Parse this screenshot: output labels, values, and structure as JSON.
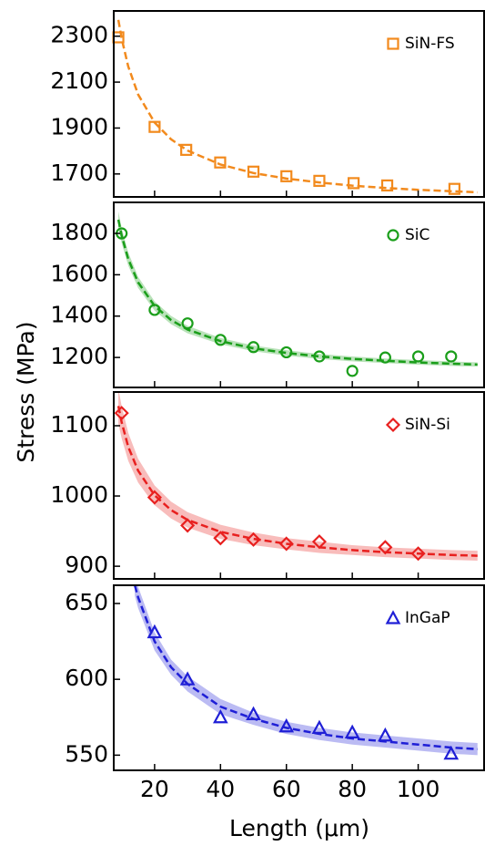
{
  "ylabel": "Stress (MPa)",
  "xlabel": "Length (μm)",
  "chart_data": [
    {
      "type": "scatter",
      "legend": "upper right",
      "ylim": [
        1600,
        2410
      ],
      "yticks": [
        1700,
        1900,
        2100,
        2300
      ],
      "series": [
        {
          "name": "SiN-FS",
          "color": "#f28a1d",
          "marker": "square",
          "x": [
            9,
            20,
            29.6,
            39.9,
            50,
            60,
            70,
            80.4,
            90.6,
            111
          ],
          "values": [
            2295,
            1905,
            1805,
            1750,
            1710,
            1690,
            1670,
            1660,
            1650,
            1635
          ]
        }
      ],
      "fit": {
        "x": [
          9,
          10,
          12,
          15,
          20,
          25,
          30,
          40,
          50,
          60,
          70,
          80,
          90,
          100,
          110,
          118
        ],
        "values": [
          2371,
          2290,
          2168,
          2046,
          1924,
          1851,
          1802,
          1741,
          1704,
          1680,
          1663,
          1649,
          1639,
          1631,
          1625,
          1620
        ]
      }
    },
    {
      "type": "scatter",
      "legend": "upper right",
      "ylim": [
        1055,
        1950
      ],
      "yticks": [
        1200,
        1400,
        1600,
        1800
      ],
      "series": [
        {
          "name": "SiC",
          "color": "#1a9e1a",
          "marker": "circle",
          "x": [
            10,
            20,
            30,
            40,
            50,
            60,
            70,
            80,
            90,
            100,
            110
          ],
          "values": [
            1800,
            1430,
            1365,
            1285,
            1250,
            1225,
            1205,
            1135,
            1200,
            1205,
            1205
          ]
        }
      ],
      "fit": {
        "x": [
          9,
          10,
          12,
          15,
          20,
          25,
          30,
          40,
          50,
          60,
          70,
          80,
          90,
          100,
          110,
          118
        ],
        "values": [
          1866,
          1790,
          1676,
          1563,
          1449,
          1381,
          1335,
          1279,
          1244,
          1222,
          1205,
          1193,
          1184,
          1176,
          1170,
          1166
        ],
        "lower": [
          1826,
          1753,
          1644,
          1536,
          1427,
          1361,
          1317,
          1264,
          1230,
          1209,
          1193,
          1181,
          1173,
          1165,
          1159,
          1156
        ],
        "upper": [
          1906,
          1827,
          1708,
          1590,
          1471,
          1401,
          1353,
          1294,
          1258,
          1235,
          1217,
          1205,
          1195,
          1187,
          1181,
          1176
        ]
      }
    },
    {
      "type": "scatter",
      "legend": "upper right",
      "ylim": [
        882,
        1148
      ],
      "yticks": [
        900,
        1000,
        1100
      ],
      "series": [
        {
          "name": "SiN-Si",
          "color": "#e8201f",
          "marker": "diamond",
          "x": [
            10,
            20,
            30,
            40,
            50,
            60,
            70,
            90,
            100
          ],
          "values": [
            1118,
            998,
            958,
            940,
            938,
            932,
            935,
            927,
            918
          ]
        }
      ],
      "fit": {
        "x": [
          9,
          10,
          12,
          15,
          20,
          25,
          30,
          40,
          50,
          60,
          70,
          80,
          90,
          100,
          110,
          118
        ],
        "values": [
          1128,
          1105,
          1070,
          1036,
          1001,
          980,
          966,
          949,
          939,
          932,
          927,
          923,
          920,
          918,
          916,
          915
        ],
        "lower": [
          1103,
          1082,
          1050,
          1019,
          987,
          968,
          955,
          939,
          930,
          924,
          919,
          916,
          913,
          911,
          909,
          908
        ],
        "upper": [
          1153,
          1128,
          1090,
          1053,
          1015,
          992,
          977,
          959,
          948,
          940,
          935,
          930,
          927,
          925,
          923,
          922
        ]
      }
    },
    {
      "type": "scatter",
      "legend": "upper right",
      "ylim": [
        540,
        662
      ],
      "yticks": [
        550,
        600,
        650
      ],
      "xlim": [
        7.6,
        120
      ],
      "xticks": [
        20,
        40,
        60,
        80,
        100
      ],
      "series": [
        {
          "name": "InGaP",
          "color": "#1f1fd6",
          "marker": "triangle",
          "x": [
            20,
            30,
            40,
            50,
            60,
            70,
            80,
            90,
            110
          ],
          "values": [
            631,
            600,
            575,
            577,
            569,
            568,
            565,
            563,
            551
          ]
        }
      ],
      "fit": {
        "x": [
          14,
          15,
          20,
          25,
          30,
          40,
          50,
          60,
          70,
          80,
          90,
          100,
          110,
          118
        ],
        "values": [
          662,
          654,
          625,
          608,
          597,
          582,
          574,
          568,
          564,
          561,
          559,
          557,
          555,
          554
        ],
        "lower": [
          655,
          647,
          619,
          603,
          592,
          577,
          570,
          564,
          560,
          557,
          555,
          553,
          551,
          550
        ],
        "upper": [
          669,
          661,
          631,
          613,
          602,
          587,
          578,
          572,
          568,
          565,
          563,
          561,
          559,
          558
        ]
      }
    }
  ]
}
